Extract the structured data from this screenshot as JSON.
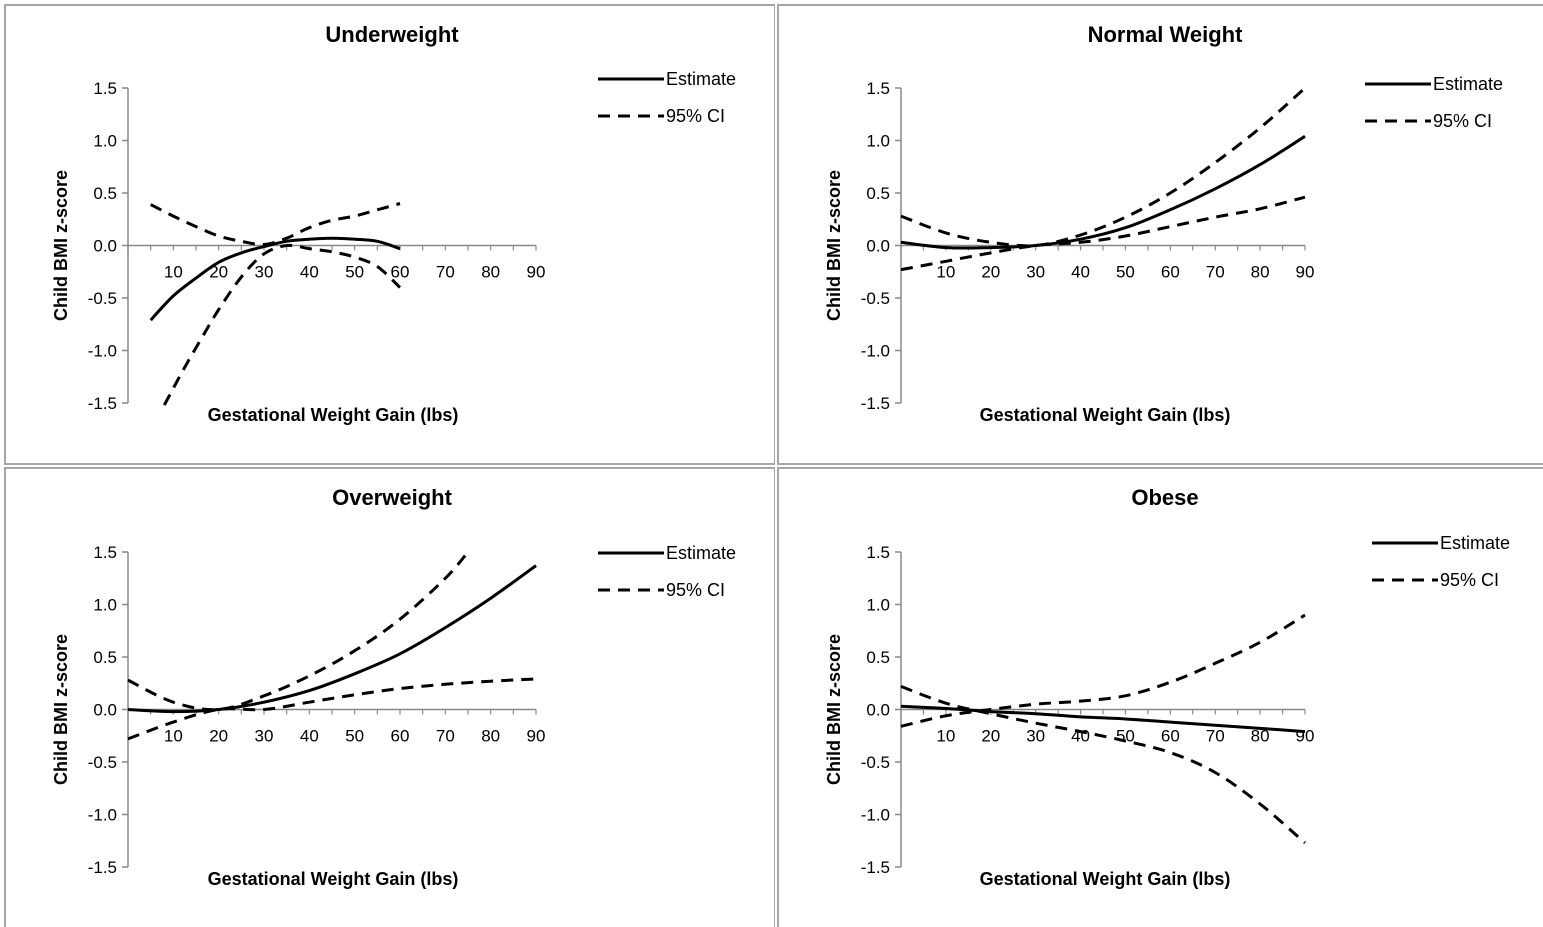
{
  "chart_data": [
    {
      "type": "line",
      "title": "Underweight",
      "xlabel": "Gestational Weight Gain (lbs)",
      "ylabel": "Child BMI z-score",
      "xlim": [
        0,
        90
      ],
      "ylim": [
        -1.5,
        1.5
      ],
      "x_ticks": [
        "10",
        "20",
        "30",
        "40",
        "50",
        "60",
        "70",
        "80",
        "90"
      ],
      "y_ticks": [
        "1.5",
        "1.0",
        "0.5",
        "0.0",
        "-0.5",
        "-1.0",
        "-1.5"
      ],
      "legend_position": "top-right",
      "series": [
        {
          "name": "Estimate",
          "style": "solid",
          "x": [
            5,
            10,
            15,
            20,
            25,
            30,
            35,
            40,
            45,
            50,
            55,
            60
          ],
          "y": [
            -0.71,
            -0.48,
            -0.31,
            -0.16,
            -0.07,
            -0.01,
            0.04,
            0.06,
            0.07,
            0.06,
            0.04,
            -0.03
          ]
        },
        {
          "name": "95% CI",
          "style": "dashed",
          "x": [
            5,
            10,
            15,
            20,
            25,
            30,
            35,
            40,
            45,
            50,
            55,
            60
          ],
          "y": [
            0.39,
            0.28,
            0.18,
            0.09,
            0.04,
            0.01,
            0.07,
            0.17,
            0.24,
            0.28,
            0.34,
            0.4
          ]
        },
        {
          "name": "",
          "style": "dashed",
          "x": [
            8,
            12,
            16,
            20,
            25,
            30,
            35,
            40,
            45,
            50,
            55,
            60
          ],
          "y": [
            -1.52,
            -1.2,
            -0.9,
            -0.61,
            -0.3,
            -0.08,
            0.0,
            -0.03,
            -0.06,
            -0.11,
            -0.2,
            -0.4
          ]
        }
      ]
    },
    {
      "type": "line",
      "title": "Normal Weight",
      "xlabel": "Gestational Weight Gain (lbs)",
      "ylabel": "Child BMI z-score",
      "xlim": [
        0,
        90
      ],
      "ylim": [
        -1.5,
        1.5
      ],
      "x_ticks": [
        "10",
        "20",
        "30",
        "40",
        "50",
        "60",
        "70",
        "80",
        "90"
      ],
      "y_ticks": [
        "1.5",
        "1.0",
        "0.5",
        "0.0",
        "-0.5",
        "-1.0",
        "-1.5"
      ],
      "legend_position": "top-right",
      "series": [
        {
          "name": "Estimate",
          "style": "solid",
          "x": [
            0,
            10,
            20,
            30,
            40,
            50,
            60,
            70,
            80,
            90
          ],
          "y": [
            0.03,
            -0.02,
            -0.02,
            0.0,
            0.06,
            0.17,
            0.34,
            0.54,
            0.77,
            1.04
          ]
        },
        {
          "name": "95% CI",
          "style": "dashed",
          "x": [
            0,
            10,
            20,
            30,
            40,
            50,
            60,
            70,
            80,
            90
          ],
          "y": [
            0.28,
            0.12,
            0.03,
            0.0,
            0.1,
            0.27,
            0.5,
            0.79,
            1.12,
            1.5
          ]
        },
        {
          "name": "",
          "style": "dashed",
          "x": [
            0,
            10,
            20,
            30,
            40,
            50,
            60,
            70,
            80,
            90
          ],
          "y": [
            -0.23,
            -0.15,
            -0.07,
            0.0,
            0.03,
            0.09,
            0.18,
            0.27,
            0.35,
            0.46
          ]
        }
      ]
    },
    {
      "type": "line",
      "title": "Overweight",
      "xlabel": "Gestational Weight Gain (lbs)",
      "ylabel": "Child BMI z-score",
      "xlim": [
        0,
        90
      ],
      "ylim": [
        -1.5,
        1.5
      ],
      "x_ticks": [
        "10",
        "20",
        "30",
        "40",
        "50",
        "60",
        "70",
        "80",
        "90"
      ],
      "y_ticks": [
        "1.5",
        "1.0",
        "0.5",
        "0.0",
        "-0.5",
        "-1.0",
        "-1.5"
      ],
      "legend_position": "top-right",
      "series": [
        {
          "name": "Estimate",
          "style": "solid",
          "x": [
            0,
            10,
            20,
            30,
            40,
            50,
            60,
            70,
            80,
            90
          ],
          "y": [
            0.0,
            -0.02,
            0.0,
            0.07,
            0.18,
            0.34,
            0.53,
            0.78,
            1.06,
            1.37
          ]
        },
        {
          "name": "95% CI",
          "style": "dashed",
          "x": [
            0,
            10,
            20,
            30,
            40,
            50,
            60,
            70,
            75
          ],
          "y": [
            0.28,
            0.07,
            0.0,
            0.13,
            0.32,
            0.56,
            0.86,
            1.25,
            1.5
          ]
        },
        {
          "name": "",
          "style": "dashed",
          "x": [
            0,
            10,
            20,
            30,
            40,
            50,
            60,
            70,
            80,
            90
          ],
          "y": [
            -0.28,
            -0.12,
            0.0,
            0.0,
            0.07,
            0.14,
            0.2,
            0.24,
            0.27,
            0.29
          ]
        }
      ]
    },
    {
      "type": "line",
      "title": "Obese",
      "xlabel": "Gestational Weight Gain (lbs)",
      "ylabel": "Child BMI z-score",
      "xlim": [
        0,
        90
      ],
      "ylim": [
        -1.5,
        1.5
      ],
      "x_ticks": [
        "10",
        "20",
        "30",
        "40",
        "50",
        "60",
        "70",
        "80",
        "90"
      ],
      "y_ticks": [
        "1.5",
        "1.0",
        "0.5",
        "0.0",
        "-0.5",
        "-1.0",
        "-1.5"
      ],
      "legend_position": "top-right",
      "series": [
        {
          "name": "Estimate",
          "style": "solid",
          "x": [
            0,
            10,
            20,
            30,
            40,
            50,
            60,
            70,
            80,
            90
          ],
          "y": [
            0.03,
            0.01,
            -0.02,
            -0.04,
            -0.07,
            -0.09,
            -0.12,
            -0.15,
            -0.18,
            -0.21
          ]
        },
        {
          "name": "95% CI",
          "style": "dashed",
          "x": [
            0,
            10,
            20,
            30,
            40,
            50,
            60,
            70,
            80,
            90
          ],
          "y": [
            -0.16,
            -0.06,
            0.0,
            0.05,
            0.08,
            0.13,
            0.26,
            0.44,
            0.64,
            0.9
          ]
        },
        {
          "name": "",
          "style": "dashed",
          "x": [
            0,
            10,
            20,
            30,
            40,
            50,
            60,
            70,
            80,
            90
          ],
          "y": [
            0.22,
            0.06,
            -0.04,
            -0.13,
            -0.21,
            -0.3,
            -0.41,
            -0.6,
            -0.9,
            -1.27
          ]
        }
      ]
    }
  ]
}
